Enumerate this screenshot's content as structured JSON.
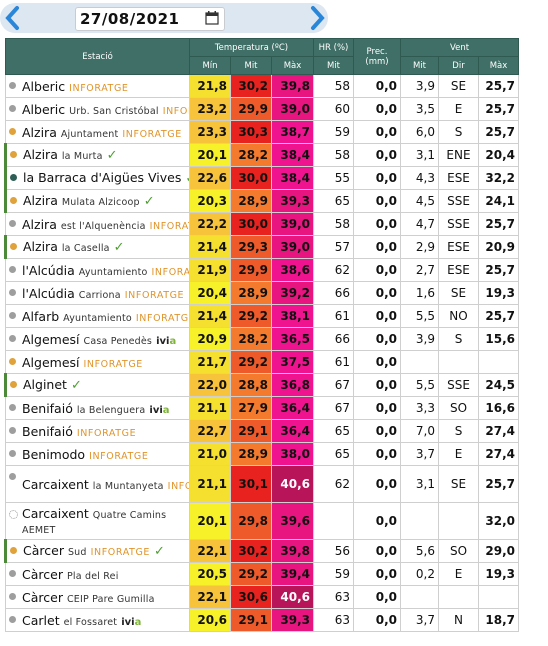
{
  "header": {
    "date": "27/08/2021"
  },
  "colors": {
    "min": "#f6f129",
    "mit": "#e8231f",
    "max": "#f0138f",
    "header": "#3f6f66"
  },
  "table": {
    "group_headers": {
      "station": "Estació",
      "temp": "Temperatura (ºC)",
      "hr": "HR (%)",
      "prec": "Prec. (mm)",
      "wind": "Vent"
    },
    "sub_headers": {
      "min": "Mín",
      "mit": "Mit",
      "max": "Màx",
      "hr_mit": "Mit",
      "wind_mit": "Mit",
      "wind_dir": "Dir",
      "wind_max": "Màx"
    },
    "rows": [
      {
        "name": "Alberic",
        "sub": "",
        "tag": "INFORATGE",
        "dot": "#9e9e9e",
        "min": "21,8",
        "mit": "30,2",
        "max": "39,8",
        "hr": "58",
        "prec": "0,0",
        "wmit": "3,9",
        "dir": "SE",
        "wmax": "25,7"
      },
      {
        "name": "Alberic",
        "sub": "Urb. San Cristóbal",
        "tag": "INFORATGE",
        "dot": "#9e9e9e",
        "min": "23,2",
        "mit": "29,9",
        "max": "39,0",
        "hr": "60",
        "prec": "0,0",
        "wmit": "3,5",
        "dir": "E",
        "wmax": "25,7"
      },
      {
        "name": "Alzira",
        "sub": "Ajuntament",
        "tag": "INFORATGE",
        "dot": "#e0a23a",
        "min": "23,3",
        "mit": "30,3",
        "max": "38,7",
        "hr": "59",
        "prec": "0,0",
        "wmit": "6,0",
        "dir": "S",
        "wmax": "25,7"
      },
      {
        "name": "Alzira",
        "sub": "la Murta",
        "check": "✓",
        "dot": "#e0a23a",
        "min": "20,1",
        "mit": "28,2",
        "max": "38,4",
        "hr": "58",
        "prec": "0,0",
        "wmit": "3,1",
        "dir": "ENE",
        "wmax": "20,4"
      },
      {
        "name": "la Barraca d'Aigües Vives",
        "check": "✓",
        "dot": "#2e5e55",
        "min": "22,6",
        "mit": "30,0",
        "max": "38,4",
        "hr": "55",
        "prec": "0,0",
        "wmit": "4,3",
        "dir": "ESE",
        "wmax": "32,2"
      },
      {
        "name": "Alzira",
        "sub": "Mulata Alzicoop",
        "check": "✓",
        "dot": "#e0a23a",
        "min": "20,3",
        "mit": "28,9",
        "max": "39,3",
        "hr": "65",
        "prec": "0,0",
        "wmit": "4,5",
        "dir": "SSE",
        "wmax": "24,1"
      },
      {
        "name": "Alzira",
        "sub": "est l'Alquenència",
        "tag": "INFORATGE",
        "dot": "#9e9e9e",
        "min": "22,2",
        "mit": "30,0",
        "max": "39,0",
        "hr": "58",
        "prec": "0,0",
        "wmit": "4,7",
        "dir": "SSE",
        "wmax": "25,7"
      },
      {
        "name": "Alzira",
        "sub": "la Casella",
        "check": "✓",
        "dot": "#e0a23a",
        "min": "21,4",
        "mit": "29,3",
        "max": "39,0",
        "hr": "57",
        "prec": "0,0",
        "wmit": "2,9",
        "dir": "ESE",
        "wmax": "20,9"
      },
      {
        "name": "l'Alcúdia",
        "sub": "Ayuntamiento",
        "tag": "INFORATGE",
        "dot": "#9e9e9e",
        "min": "21,9",
        "mit": "29,9",
        "max": "38,6",
        "hr": "62",
        "prec": "0,0",
        "wmit": "2,7",
        "dir": "ESE",
        "wmax": "25,7"
      },
      {
        "name": "l'Alcúdia",
        "sub": "Carriona",
        "tag": "INFORATGE",
        "dot": "#9e9e9e",
        "min": "20,4",
        "mit": "28,9",
        "max": "39,2",
        "hr": "66",
        "prec": "0,0",
        "wmit": "1,6",
        "dir": "SE",
        "wmax": "19,3"
      },
      {
        "name": "Alfarb",
        "sub": "Ayuntamiento",
        "tag": "INFORATGE",
        "dot": "#9e9e9e",
        "min": "21,4",
        "mit": "29,2",
        "max": "38,1",
        "hr": "61",
        "prec": "0,0",
        "wmit": "5,5",
        "dir": "NO",
        "wmax": "25,7"
      },
      {
        "name": "Algemesí",
        "sub": "Casa Penedès",
        "ivia": "ivi",
        "dot": "#9e9e9e",
        "min": "20,9",
        "mit": "28,2",
        "max": "36,5",
        "hr": "66",
        "prec": "0,0",
        "wmit": "3,9",
        "dir": "S",
        "wmax": "15,6"
      },
      {
        "name": "Algemesí",
        "sub": "",
        "tag": "INFORATGE",
        "dot": "#e0a23a",
        "min": "21,7",
        "mit": "29,2",
        "max": "37,5",
        "hr": "61",
        "prec": "0,0",
        "wmit": "",
        "dir": "",
        "wmax": ""
      },
      {
        "name": "Alginet",
        "sub": "",
        "check": "✓",
        "dot": "#e0a23a",
        "min": "22,0",
        "mit": "28,8",
        "max": "36,8",
        "hr": "67",
        "prec": "0,0",
        "wmit": "5,5",
        "dir": "SSE",
        "wmax": "24,5"
      },
      {
        "name": "Benifaió",
        "sub": "la Belenguera",
        "ivia": "ivi",
        "dot": "#9e9e9e",
        "min": "21,1",
        "mit": "27,9",
        "max": "36,4",
        "hr": "67",
        "prec": "0,0",
        "wmit": "3,3",
        "dir": "SO",
        "wmax": "16,6"
      },
      {
        "name": "Benifaió",
        "sub": "",
        "tag": "INFORATGE",
        "dot": "#9e9e9e",
        "min": "22,7",
        "mit": "29,1",
        "max": "36,4",
        "hr": "65",
        "prec": "0,0",
        "wmit": "7,0",
        "dir": "S",
        "wmax": "27,4"
      },
      {
        "name": "Benimodo",
        "sub": "",
        "tag": "INFORATGE",
        "dot": "#9e9e9e",
        "min": "21,0",
        "mit": "28,9",
        "max": "38,0",
        "hr": "65",
        "prec": "0,0",
        "wmit": "3,7",
        "dir": "E",
        "wmax": "27,4"
      },
      {
        "name": "Carcaixent",
        "sub": "la Muntanyeta",
        "tag": "INFORATGE",
        "dot": "#9e9e9e",
        "min": "21,1",
        "mit": "30,1",
        "max": "40,6",
        "hr": "62",
        "prec": "0,0",
        "wmit": "3,1",
        "dir": "SE",
        "wmax": "25,7",
        "tall": true
      },
      {
        "name": "Carcaixent",
        "sub": "Quatre Camins",
        "line2": "AEMET",
        "dot": "#ffffff",
        "min": "20,1",
        "mit": "29,8",
        "max": "39,6",
        "hr": "",
        "prec": "0,0",
        "wmit": "",
        "dir": "",
        "wmax": "32,0",
        "tall": true
      },
      {
        "name": "Càrcer",
        "sub": "Sud",
        "tag": "INFORATGE",
        "check": "✓",
        "dot": "#e0a23a",
        "min": "22,1",
        "mit": "30,2",
        "max": "39,8",
        "hr": "56",
        "prec": "0,0",
        "wmit": "5,6",
        "dir": "SO",
        "wmax": "29,0"
      },
      {
        "name": "Càrcer",
        "sub": "Pla del Rei",
        "dot": "#9e9e9e",
        "min": "20,5",
        "mit": "29,2",
        "max": "39,4",
        "hr": "59",
        "prec": "0,0",
        "wmit": "0,2",
        "dir": "E",
        "wmax": "19,3"
      },
      {
        "name": "Càrcer",
        "sub": "CEIP Pare Gumilla",
        "dot": "#9e9e9e",
        "min": "22,1",
        "mit": "30,6",
        "max": "40,6",
        "hr": "63",
        "prec": "0,0",
        "wmit": "",
        "dir": "",
        "wmax": ""
      },
      {
        "name": "Carlet",
        "sub": "el Fossaret",
        "ivia": "ivi",
        "dot": "#9e9e9e",
        "min": "20,6",
        "mit": "29,1",
        "max": "39,3",
        "hr": "63",
        "prec": "0,0",
        "wmit": "3,7",
        "dir": "N",
        "wmax": "18,7"
      }
    ]
  }
}
